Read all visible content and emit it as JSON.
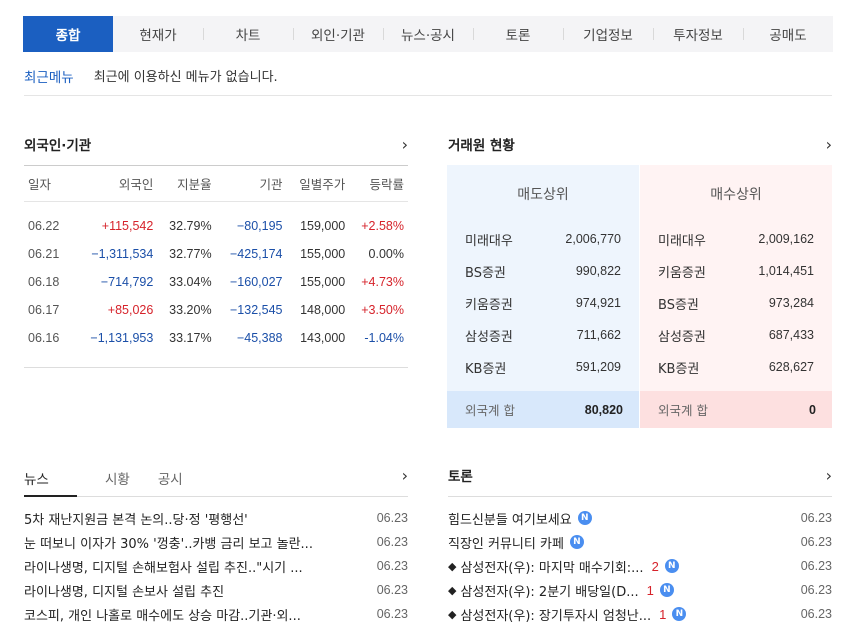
{
  "tabs": [
    {
      "label": "종합",
      "active": true
    },
    {
      "label": "현재가",
      "active": false
    },
    {
      "label": "차트",
      "active": false
    },
    {
      "label": "외인·기관",
      "active": false
    },
    {
      "label": "뉴스·공시",
      "active": false
    },
    {
      "label": "토론",
      "active": false
    },
    {
      "label": "기업정보",
      "active": false
    },
    {
      "label": "투자정보",
      "active": false
    },
    {
      "label": "공매도",
      "active": false
    }
  ],
  "recent": {
    "title": "최근메뉴",
    "message": "최근에 이용하신 메뉴가 없습니다."
  },
  "foreign": {
    "title": "외국인·기관",
    "more_icon": "chevron-right-icon",
    "headers": [
      "일자",
      "외국인",
      "지분율",
      "기관",
      "일별주가",
      "등락률"
    ],
    "rows": [
      {
        "date": "06.22",
        "foreign": "+115,542",
        "ratio": "32.79%",
        "inst": "−80,195",
        "price": "159,000",
        "change": "+2.58%"
      },
      {
        "date": "06.21",
        "foreign": "−1,311,534",
        "ratio": "32.77%",
        "inst": "−425,174",
        "price": "155,000",
        "change": "0.00%"
      },
      {
        "date": "06.18",
        "foreign": "−714,792",
        "ratio": "33.04%",
        "inst": "−160,027",
        "price": "155,000",
        "change": "+4.73%"
      },
      {
        "date": "06.17",
        "foreign": "+85,026",
        "ratio": "33.20%",
        "inst": "−132,545",
        "price": "148,000",
        "change": "+3.50%"
      },
      {
        "date": "06.16",
        "foreign": "−1,131,953",
        "ratio": "33.17%",
        "inst": "−45,388",
        "price": "143,000",
        "change": "-1.04%"
      }
    ]
  },
  "broker": {
    "title": "거래원 현황",
    "sell": {
      "header": "매도상위",
      "rows": [
        {
          "name": "미래대우",
          "value": "2,006,770"
        },
        {
          "name": "BS증권",
          "value": "990,822"
        },
        {
          "name": "키움증권",
          "value": "974,921"
        },
        {
          "name": "삼성증권",
          "value": "711,662"
        },
        {
          "name": "KB증권",
          "value": "591,209"
        }
      ],
      "foot_label": "외국계 합",
      "foot_value": "80,820"
    },
    "buy": {
      "header": "매수상위",
      "rows": [
        {
          "name": "미래대우",
          "value": "2,009,162"
        },
        {
          "name": "키움증권",
          "value": "1,014,451"
        },
        {
          "name": "BS증권",
          "value": "973,284"
        },
        {
          "name": "삼성증권",
          "value": "687,433"
        },
        {
          "name": "KB증권",
          "value": "628,627"
        }
      ],
      "foot_label": "외국계 합",
      "foot_value": "0"
    }
  },
  "news": {
    "tabs": [
      "뉴스",
      "시황",
      "공시"
    ],
    "items": [
      {
        "title": "5차 재난지원금 본격 논의..당·정 '평행선'",
        "date": "06.23"
      },
      {
        "title": "눈 떠보니 이자가 30% '껑충'..카뱅 금리 보고 놀란...",
        "date": "06.23"
      },
      {
        "title": "라이나생명, 디지털 손해보험사 설립 추진..\"시기 ...",
        "date": "06.23"
      },
      {
        "title": "라이나생명, 디지털 손보사 설립 추진",
        "date": "06.23"
      },
      {
        "title": "코스피, 개인 나홀로 매수에도 상승 마감..기관·외...",
        "date": "06.23"
      }
    ]
  },
  "debate": {
    "title": "토론",
    "items": [
      {
        "bullet": "",
        "title": "힘드신분들 여기보세요",
        "count": "",
        "badge": "N",
        "date": "06.23"
      },
      {
        "bullet": "",
        "title": "직장인 커뮤니티 카페",
        "count": "",
        "badge": "N",
        "date": "06.23"
      },
      {
        "bullet": "◆",
        "title": "삼성전자(우): 마지막 매수기회:...",
        "count": "2",
        "badge": "N",
        "date": "06.23"
      },
      {
        "bullet": "◆",
        "title": "삼성전자(우): 2분기 배당일(D...",
        "count": "1",
        "badge": "N",
        "date": "06.23"
      },
      {
        "bullet": "◆",
        "title": "삼성전자(우): 장기투자시 엄청난...",
        "count": "1",
        "badge": "N",
        "date": "06.23"
      }
    ]
  }
}
